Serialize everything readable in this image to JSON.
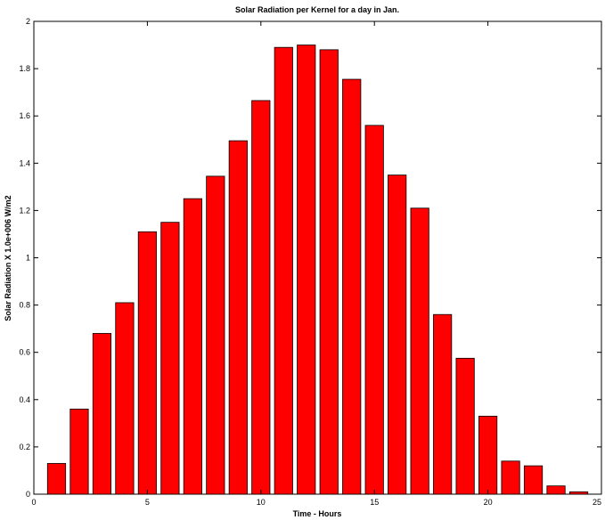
{
  "chart_data": {
    "type": "bar",
    "title": "Solar Radiation per Kernel for a day in Jan.",
    "xlabel": "Time - Hours",
    "ylabel": "Solar Radiation X 1.0e+006 W/m2",
    "x": [
      1,
      2,
      3,
      4,
      5,
      6,
      7,
      8,
      9,
      10,
      11,
      12,
      13,
      14,
      15,
      16,
      17,
      18,
      19,
      20,
      21,
      22,
      23,
      24
    ],
    "values": [
      0.13,
      0.36,
      0.68,
      0.81,
      1.11,
      1.15,
      1.25,
      1.345,
      1.495,
      1.665,
      1.89,
      1.9,
      1.88,
      1.755,
      1.56,
      1.35,
      1.21,
      0.76,
      0.575,
      0.33,
      0.14,
      0.12,
      0.035,
      0.01
    ],
    "xlim": [
      0,
      25
    ],
    "ylim": [
      0,
      2
    ],
    "xticks": [
      "0",
      "5",
      "10",
      "15",
      "20",
      "25"
    ],
    "yticks": [
      "0",
      "0.2",
      "0.4",
      "0.6",
      "0.8",
      "1",
      "1.2",
      "1.4",
      "1.6",
      "1.8",
      "2"
    ],
    "bar_color": "#ff0000",
    "grid": false,
    "legend": "none"
  }
}
